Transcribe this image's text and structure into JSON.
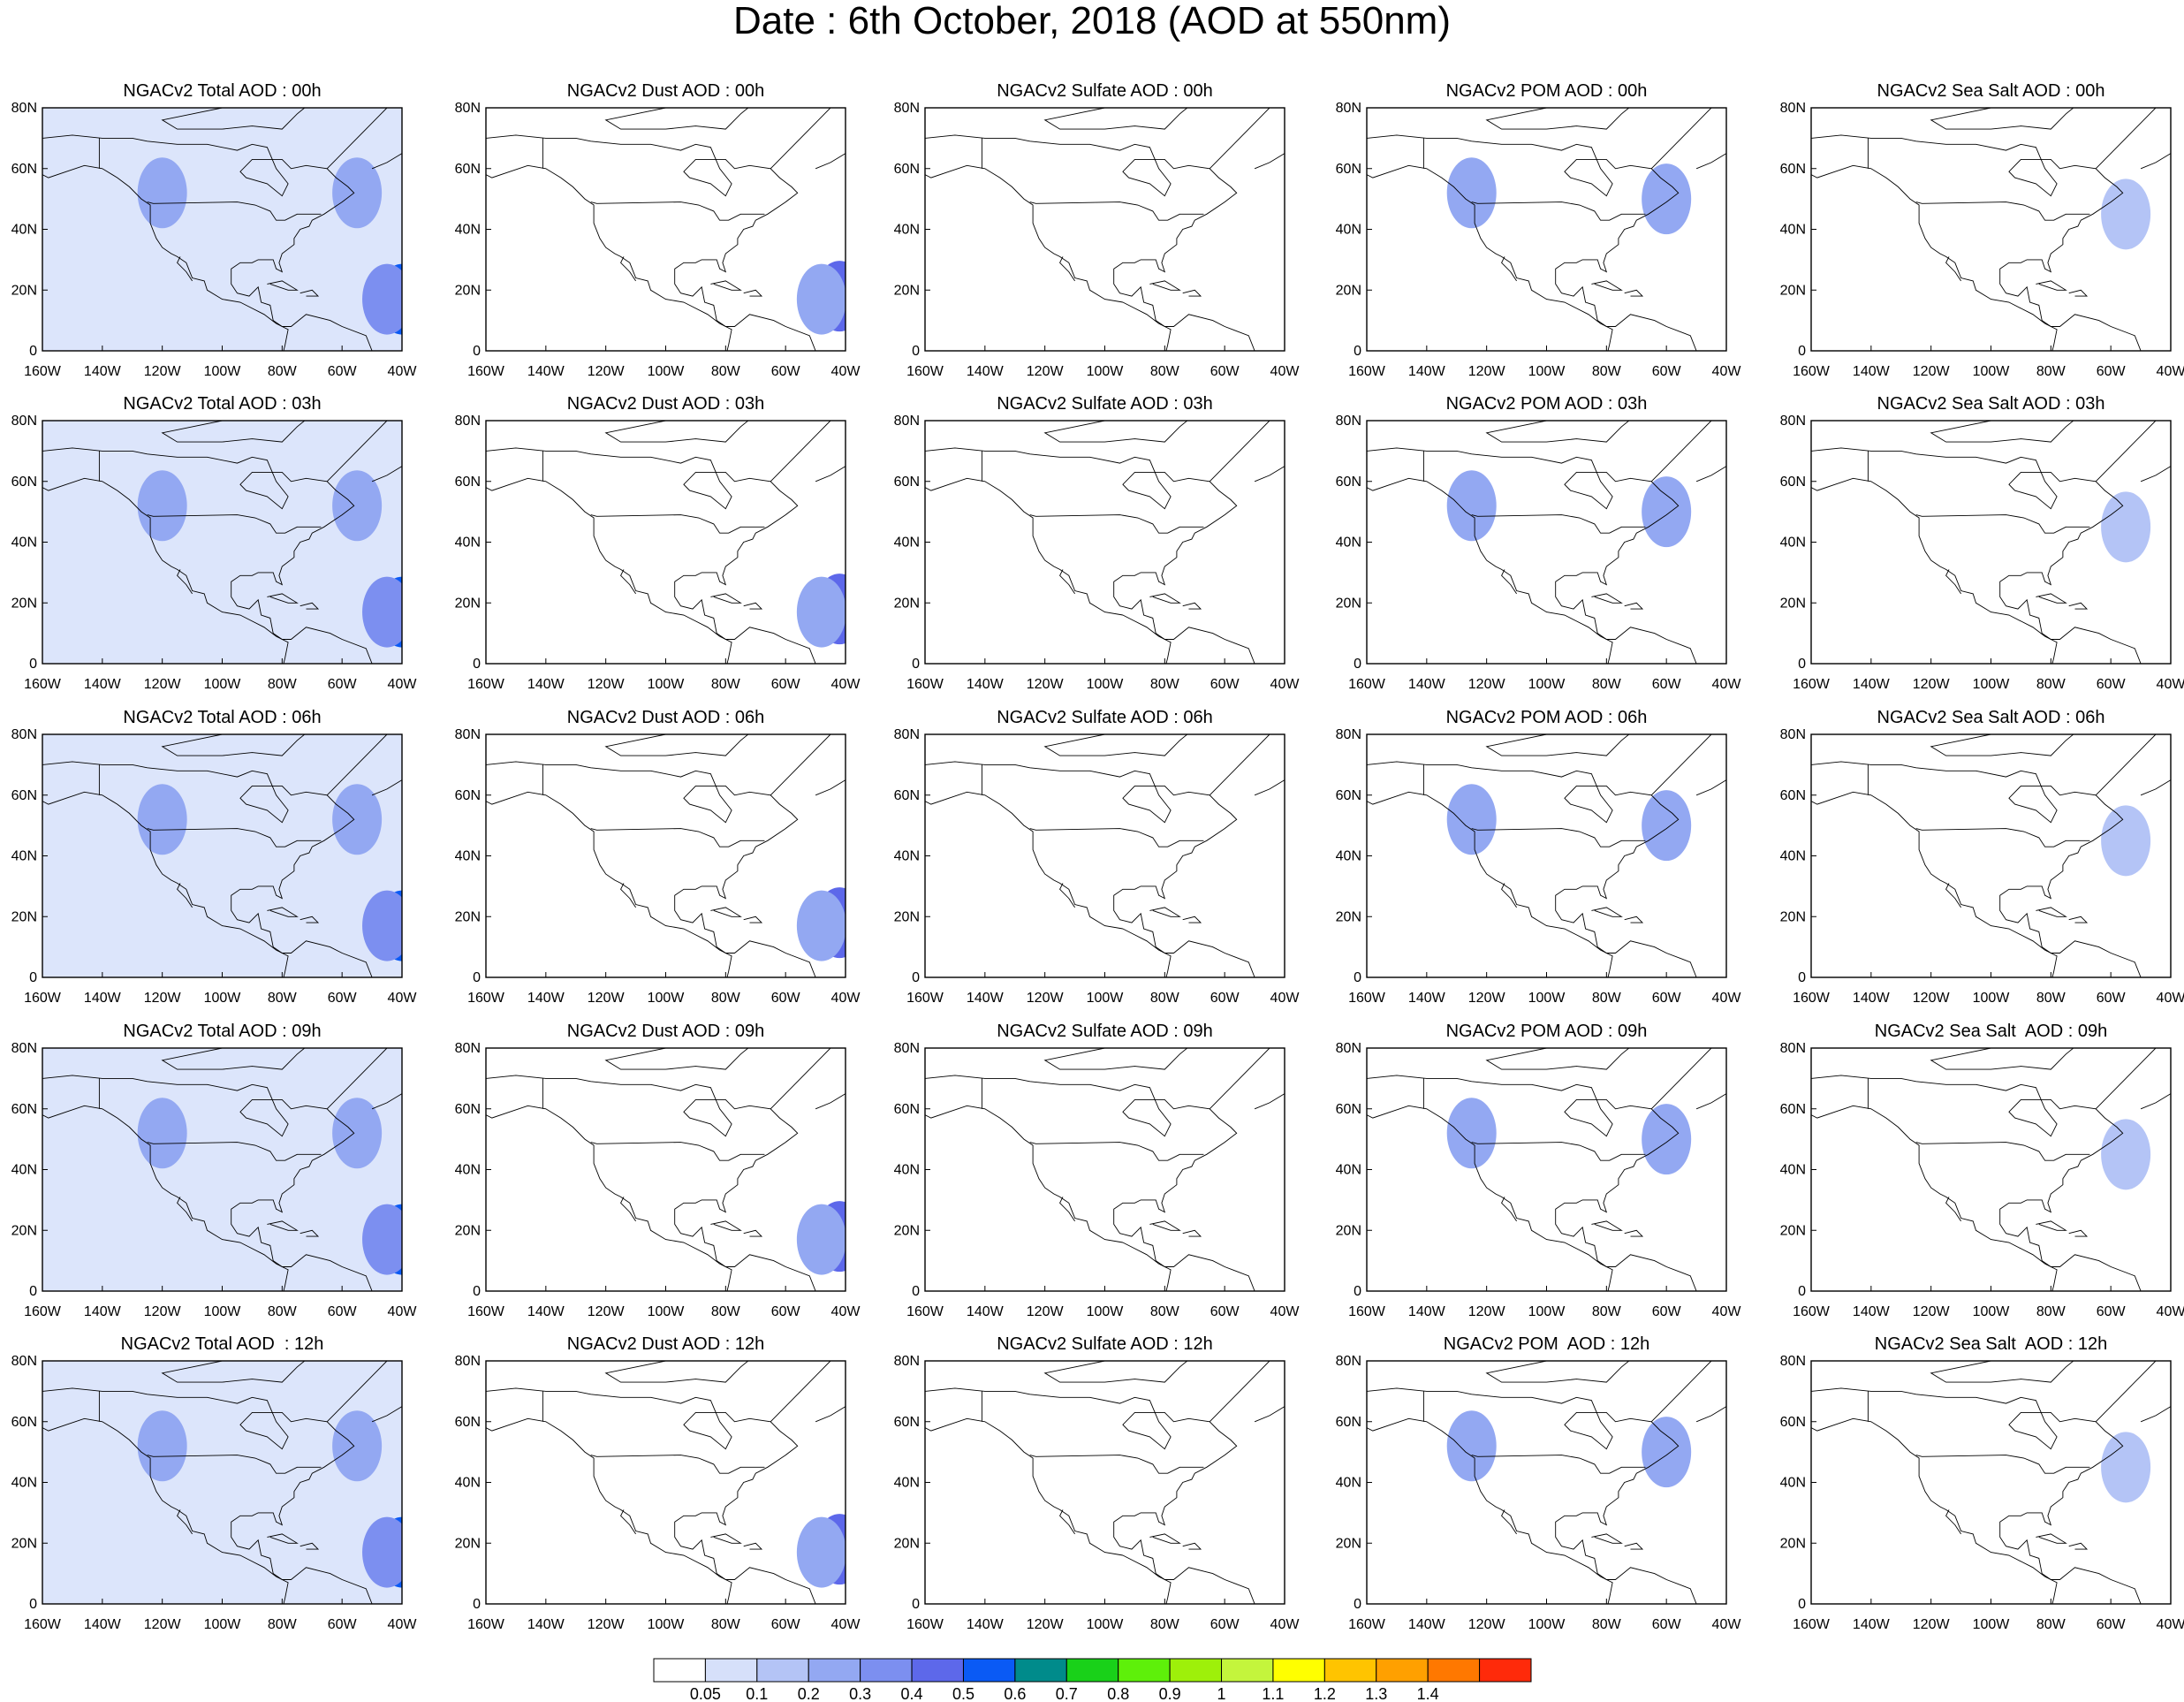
{
  "title": "Date : 6th October, 2018 (AOD at 550nm)",
  "panel_titles": [
    [
      "NGACv2 Total AOD : 00h",
      "NGACv2 Dust AOD : 00h",
      "NGACv2 Sulfate AOD : 00h",
      "NGACv2 POM AOD : 00h",
      "NGACv2 Sea Salt AOD : 00h"
    ],
    [
      "NGACv2 Total AOD : 03h",
      "NGACv2 Dust AOD : 03h",
      "NGACv2 Sulfate AOD : 03h",
      "NGACv2 POM AOD : 03h",
      "NGACv2 Sea Salt AOD : 03h"
    ],
    [
      "NGACv2 Total AOD : 06h",
      "NGACv2 Dust AOD : 06h",
      "NGACv2 Sulfate AOD : 06h",
      "NGACv2 POM AOD : 06h",
      "NGACv2 Sea Salt AOD : 06h"
    ],
    [
      "NGACv2 Total AOD : 09h",
      "NGACv2 Dust AOD : 09h",
      "NGACv2 Sulfate AOD : 09h",
      "NGACv2 POM AOD : 09h",
      "NGACv2 Sea Salt  AOD : 09h"
    ],
    [
      "NGACv2 Total AOD  : 12h",
      "NGACv2 Dust AOD : 12h",
      "NGACv2 Sulfate AOD : 12h",
      "NGACv2 POM  AOD : 12h",
      "NGACv2 Sea Salt  AOD : 12h"
    ]
  ],
  "map": {
    "lat_ticks": [
      "0",
      "20N",
      "40N",
      "60N",
      "80N"
    ],
    "lon_ticks": [
      "160W",
      "140W",
      "120W",
      "100W",
      "80W",
      "60W",
      "40W"
    ],
    "lat_range": [
      0,
      80
    ],
    "lon_range": [
      -160,
      -40
    ]
  },
  "colorbar": {
    "labels": [
      "0.05",
      "0.1",
      "0.2",
      "0.3",
      "0.4",
      "0.5",
      "0.6",
      "0.7",
      "0.8",
      "0.9",
      "1",
      "1.1",
      "1.2",
      "1.3",
      "1.4"
    ],
    "colors": [
      "#ffffff",
      "#d6e0fa",
      "#b4c4f6",
      "#93a8f2",
      "#7c8ff0",
      "#5d68ea",
      "#0a5af5",
      "#008b8b",
      "#19d119",
      "#5ef00a",
      "#9ef00a",
      "#c4f53c",
      "#ffff00",
      "#ffc400",
      "#ffa000",
      "#ff7800",
      "#ff2a0a"
    ]
  },
  "fields": {
    "Total": [
      {
        "lon": -40,
        "lat": 17,
        "v": 0.5
      },
      {
        "lon": -45,
        "lat": 17,
        "v": 0.3
      },
      {
        "lon": -120,
        "lat": 52,
        "v": 0.2
      },
      {
        "lon": -55,
        "lat": 52,
        "v": 0.2
      }
    ],
    "Dust": [
      {
        "lon": -42,
        "lat": 18,
        "v": 0.4
      },
      {
        "lon": -48,
        "lat": 17,
        "v": 0.2
      }
    ],
    "Sulfate": [],
    "POM": [
      {
        "lon": -125,
        "lat": 52,
        "v": 0.2
      },
      {
        "lon": -60,
        "lat": 50,
        "v": 0.2
      }
    ],
    "SeaSalt": [
      {
        "lon": -55,
        "lat": 45,
        "v": 0.1
      }
    ]
  }
}
